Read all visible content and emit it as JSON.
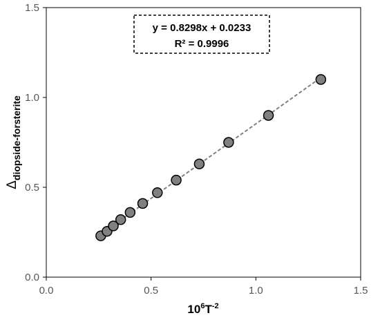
{
  "chart_data": {
    "type": "scatter",
    "x": [
      0.26,
      0.29,
      0.32,
      0.355,
      0.4,
      0.46,
      0.53,
      0.62,
      0.73,
      0.87,
      1.06,
      1.31
    ],
    "y": [
      0.23,
      0.255,
      0.285,
      0.32,
      0.36,
      0.41,
      0.47,
      0.54,
      0.63,
      0.75,
      0.9,
      1.1
    ],
    "xlim": [
      0.0,
      1.5
    ],
    "ylim": [
      0.0,
      1.5
    ],
    "xticks": [
      "0.0",
      "0.5",
      "1.0",
      "1.5"
    ],
    "yticks": [
      "0.0",
      "0.5",
      "1.0",
      "1.5"
    ],
    "xlabel": {
      "base": "10",
      "sup1": "6",
      "mid": "T",
      "sup2": "-2"
    },
    "ylabel": {
      "symbol": "Δ",
      "subscript": "diopside-forsterite"
    },
    "trendline": {
      "slope": 0.8298,
      "intercept": 0.0233,
      "x_range": [
        0.26,
        1.31
      ],
      "equation": "y = 0.8298x + 0.0233",
      "r_squared": "R² = 0.9996"
    },
    "grid": false,
    "colors": {
      "marker_fill": "#808080",
      "marker_stroke": "#000000",
      "trendline": "#808080"
    }
  }
}
